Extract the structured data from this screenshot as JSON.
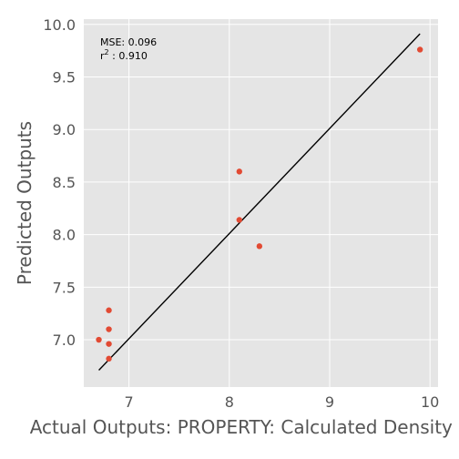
{
  "chart_data": {
    "type": "scatter",
    "title": "",
    "xlabel": "Actual Outputs: PROPERTY: Calculated Density (g/cc)",
    "ylabel": "Predicted Outputs",
    "xlim": [
      6.55,
      10.08
    ],
    "ylim": [
      6.55,
      10.05
    ],
    "xticks": [
      7,
      8,
      9,
      10
    ],
    "yticks": [
      7.0,
      7.5,
      8.0,
      8.5,
      9.0,
      9.5,
      10.0
    ],
    "xtick_labels": [
      "7",
      "8",
      "9",
      "10"
    ],
    "ytick_labels": [
      "7.0",
      "7.5",
      "8.0",
      "8.5",
      "9.0",
      "9.5",
      "10.0"
    ],
    "grid": true,
    "background": "#e5e5e5",
    "grid_color": "#ffffff",
    "point_color": "#e24a33",
    "line_color": "#000000",
    "points": [
      {
        "x": 6.7,
        "y": 7.0
      },
      {
        "x": 6.8,
        "y": 7.28
      },
      {
        "x": 6.8,
        "y": 7.1
      },
      {
        "x": 6.8,
        "y": 6.96
      },
      {
        "x": 6.8,
        "y": 6.82
      },
      {
        "x": 8.1,
        "y": 8.6
      },
      {
        "x": 8.1,
        "y": 8.14
      },
      {
        "x": 8.3,
        "y": 7.89
      },
      {
        "x": 9.9,
        "y": 9.76
      }
    ],
    "fit_line": {
      "x": [
        6.7,
        9.9
      ],
      "y": [
        6.71,
        9.91
      ]
    },
    "annotation": {
      "mse_label": "MSE: 0.096",
      "r2_base": "r",
      "r2_sup": "2",
      "r2_value": " : 0.910"
    }
  }
}
